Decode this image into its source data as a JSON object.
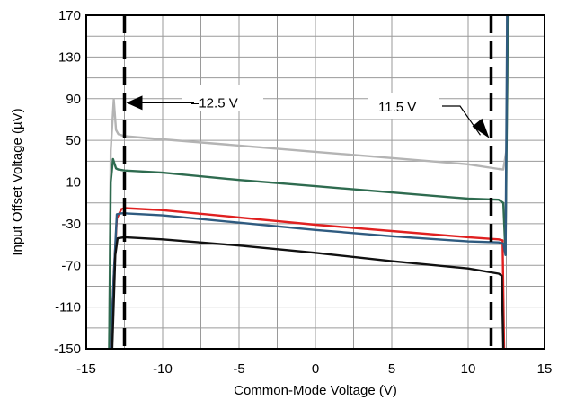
{
  "chart_data": {
    "type": "line",
    "title": "",
    "xlabel": "Common-Mode Voltage (V)",
    "ylabel": "Input Offset Voltage (µV)",
    "xlim": [
      -15,
      15
    ],
    "ylim": [
      -150,
      170
    ],
    "xticks": [
      -15,
      -10,
      -5,
      0,
      5,
      10,
      15
    ],
    "yticks": [
      -150,
      -110,
      -70,
      -30,
      10,
      50,
      90,
      130,
      170
    ],
    "grid": true,
    "legend": "none",
    "annotations": [
      {
        "text": "–12.5 V",
        "x": -12.5
      },
      {
        "text": "11.5 V",
        "x": 11.5
      }
    ],
    "series": [
      {
        "color": "#b4b4b4",
        "points": [
          [
            -13.5,
            -150
          ],
          [
            -13.4,
            40
          ],
          [
            -13.2,
            89
          ],
          [
            -13.05,
            60
          ],
          [
            -12.9,
            56
          ],
          [
            -12.5,
            54
          ],
          [
            -10,
            51
          ],
          [
            -5,
            45
          ],
          [
            0,
            39
          ],
          [
            5,
            33
          ],
          [
            10,
            27
          ],
          [
            12.0,
            22.5
          ],
          [
            12.3,
            22
          ],
          [
            12.5,
            40
          ],
          [
            12.65,
            170
          ]
        ]
      },
      {
        "color": "#2e6b4f",
        "points": [
          [
            -13.5,
            -150
          ],
          [
            -13.4,
            10
          ],
          [
            -13.25,
            32
          ],
          [
            -13.05,
            23
          ],
          [
            -12.9,
            22
          ],
          [
            -12.5,
            21
          ],
          [
            -10,
            19
          ],
          [
            -5,
            12
          ],
          [
            0,
            6
          ],
          [
            5,
            0
          ],
          [
            10,
            -6
          ],
          [
            12.0,
            -7
          ],
          [
            12.3,
            -10
          ],
          [
            12.45,
            -60
          ],
          [
            12.6,
            170
          ]
        ]
      },
      {
        "color": "#e02020",
        "points": [
          [
            -13.4,
            -150
          ],
          [
            -13.2,
            -80
          ],
          [
            -13.0,
            -25
          ],
          [
            -12.7,
            -16
          ],
          [
            -12.5,
            -15
          ],
          [
            -10,
            -17
          ],
          [
            -5,
            -24
          ],
          [
            0,
            -31
          ],
          [
            5,
            -37
          ],
          [
            10,
            -43
          ],
          [
            12.0,
            -45
          ],
          [
            12.25,
            -46
          ],
          [
            12.35,
            -150
          ]
        ]
      },
      {
        "color": "#2f5b80",
        "points": [
          [
            -13.4,
            -150
          ],
          [
            -13.2,
            -80
          ],
          [
            -13.0,
            -21
          ],
          [
            -12.7,
            -20
          ],
          [
            -12.5,
            -20
          ],
          [
            -10,
            -22
          ],
          [
            -5,
            -29
          ],
          [
            0,
            -36
          ],
          [
            5,
            -42
          ],
          [
            10,
            -47
          ],
          [
            12.0,
            -48
          ],
          [
            12.3,
            -49
          ],
          [
            12.45,
            -60
          ],
          [
            12.55,
            170
          ]
        ]
      },
      {
        "color": "#111111",
        "points": [
          [
            -13.3,
            -150
          ],
          [
            -13.1,
            -60
          ],
          [
            -12.95,
            -44
          ],
          [
            -12.5,
            -43
          ],
          [
            -10,
            -45
          ],
          [
            -5,
            -51
          ],
          [
            0,
            -58
          ],
          [
            5,
            -66
          ],
          [
            10,
            -73
          ],
          [
            12.0,
            -78
          ],
          [
            12.2,
            -80
          ],
          [
            12.3,
            -150
          ]
        ]
      }
    ]
  }
}
